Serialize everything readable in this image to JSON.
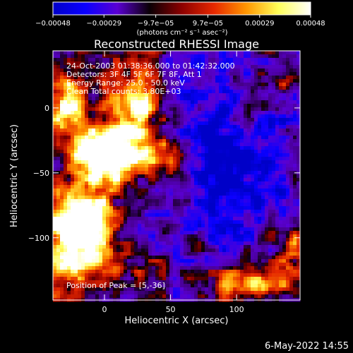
{
  "chart_data": {
    "type": "heatmap",
    "title": "Reconstructed RHESSI Image",
    "xlabel": "Heliocentric X (arcsec)",
    "ylabel": "Heliocentric Y (arcsec)",
    "xlim": [
      -39,
      148
    ],
    "ylim": [
      -148,
      44
    ],
    "x_ticks": [
      0,
      50,
      100
    ],
    "y_ticks": [
      0,
      -50,
      -100
    ],
    "x_tick_labels": [
      "0",
      "50",
      "100"
    ],
    "y_tick_labels": [
      "0",
      "−50",
      "−100"
    ],
    "colorbar": {
      "range": [
        -0.00048,
        0.00048
      ],
      "tick_values": [
        -0.00048,
        -0.00029,
        -9.7e-05,
        9.7e-05,
        0.00029,
        0.00048
      ],
      "tick_labels": [
        "−0.00048",
        "−0.00029",
        "−9.7e−05",
        "9.7e−05",
        "0.00029",
        "0.00048"
      ],
      "units": "(photons cm⁻² s⁻¹ asec⁻²)",
      "stops": [
        "#0000c8",
        "#0a00ff",
        "#5a00d2",
        "#0a0005",
        "#8c0000",
        "#e62800",
        "#ff9600",
        "#ffff5a",
        "#ffffff"
      ]
    },
    "annotations": [
      "24-Oct-2003 01:38:36.000 to 01:42:32.000",
      "Detectors: 3F 4F 5F 6F 7F 8F, Att 1",
      "Energy Range: 25.0 - 50.0 keV",
      "Clean     Total counts: 3.80E+03"
    ],
    "peak_annotation": "Position of Peak = [5,-36]",
    "peak": [
      5,
      -36
    ],
    "footer": "6-May-2022 14:55"
  }
}
